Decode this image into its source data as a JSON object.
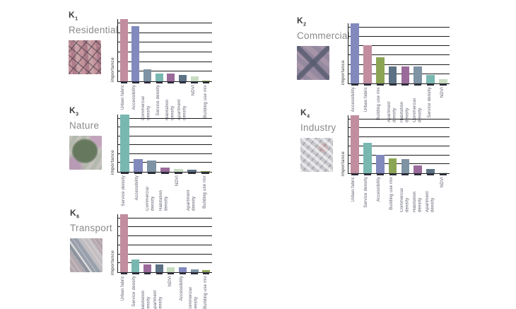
{
  "ylabel_text": "importance",
  "feature_colors": {
    "Urban fabric": "#c18d9f",
    "Accessibility": "#8289bd",
    "Commercial density": "#7e93a4",
    "Service density": "#79b7b1",
    "Habitation density": "#9a6b9a",
    "Apartment density": "#5c7284",
    "NDVI": "#c8dcc1",
    "Building use mix": "#8ca554"
  },
  "chart_data": [
    {
      "type": "bar",
      "cluster_letter": "K",
      "cluster_index": "1",
      "category": "Residential",
      "ylabel": "importance",
      "thumbnail": "residential-aerial-photo",
      "ylim": [
        0,
        1
      ],
      "grid": "horizontal",
      "categories": [
        "Urban fabric",
        "Accessibility",
        "Commercial density",
        "Service density",
        "Habitation density",
        "Apartment density",
        "NDVI",
        "Building use mix"
      ],
      "values": [
        1.0,
        0.89,
        0.19,
        0.13,
        0.12,
        0.1,
        0.08,
        0.015
      ]
    },
    {
      "type": "bar",
      "cluster_letter": "K",
      "cluster_index": "2",
      "category": "Commercial",
      "ylabel": "importance",
      "thumbnail": "commercial-aerial-photo",
      "ylim": [
        0,
        1
      ],
      "grid": "horizontal",
      "categories": [
        "Accessibility",
        "Urban fabric",
        "Building use mix",
        "Apartment density",
        "Habitation density",
        "Commercial density",
        "Service density",
        "NDVI"
      ],
      "values": [
        1.0,
        0.63,
        0.43,
        0.285,
        0.285,
        0.285,
        0.14,
        0.07
      ]
    },
    {
      "type": "bar",
      "cluster_letter": "K",
      "cluster_index": "3",
      "category": "Nature",
      "ylabel": "importance",
      "thumbnail": "nature-aerial-photo",
      "ylim": [
        0,
        1
      ],
      "grid": "horizontal",
      "categories": [
        "Service density",
        "Accessibility",
        "Commercial density",
        "Habitation density",
        "NDVI",
        "Apartment density",
        "Building use mix"
      ],
      "values": [
        1.0,
        0.22,
        0.2,
        0.075,
        0.045,
        0.04,
        0.015
      ]
    },
    {
      "type": "bar",
      "cluster_letter": "K",
      "cluster_index": "4",
      "category": "Industry",
      "ylabel": "importance",
      "thumbnail": "industry-aerial-photo",
      "ylim": [
        0,
        1
      ],
      "grid": "horizontal",
      "categories": [
        "Urban fabric",
        "Service density",
        "Accessibility",
        "Building use mix",
        "Commercial density",
        "Habitation density",
        "Apartment density",
        "NDVI"
      ],
      "values": [
        1.0,
        0.53,
        0.32,
        0.26,
        0.24,
        0.13,
        0.07,
        0.015
      ]
    },
    {
      "type": "bar",
      "cluster_letter": "K",
      "cluster_index": "6",
      "category": "Transport",
      "ylabel": "importance",
      "thumbnail": "transport-aerial-photo",
      "ylim": [
        0,
        1
      ],
      "grid": "horizontal",
      "categories": [
        "Urban fabric",
        "Service density",
        "Habitation density",
        "Apartment density",
        "NDVI",
        "Accessibility",
        "Commercial density",
        "Building use mix"
      ],
      "values": [
        1.0,
        0.22,
        0.14,
        0.13,
        0.09,
        0.085,
        0.045,
        0.04
      ]
    }
  ]
}
